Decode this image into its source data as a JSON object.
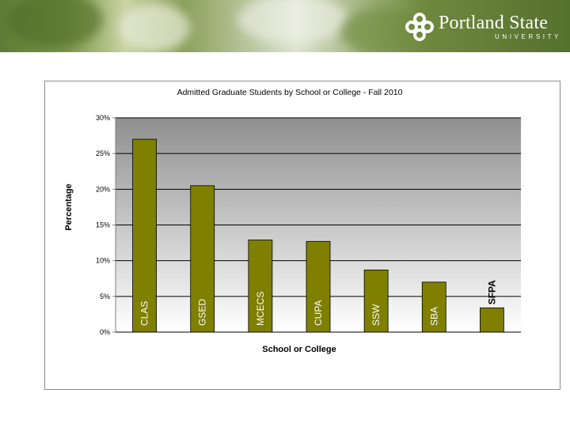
{
  "header": {
    "logo_name": "Portland State",
    "logo_sub": "UNIVERSITY"
  },
  "chart_data": {
    "type": "bar",
    "title": "Admitted Graduate Students by School or College -  Fall 2010",
    "xlabel": "School or College",
    "ylabel": "Percentage",
    "categories": [
      "CLAS",
      "GSED",
      "MCECS",
      "CUPA",
      "SSW",
      "SBA",
      "SFPA"
    ],
    "values": [
      27.0,
      20.5,
      12.9,
      12.7,
      8.7,
      7.0,
      3.4
    ],
    "ylim": [
      0,
      30
    ],
    "yticks": [
      0,
      5,
      10,
      15,
      20,
      25,
      30
    ],
    "ytick_labels": [
      "0%",
      "5%",
      "10%",
      "15%",
      "20%",
      "25%",
      "30%"
    ],
    "grid": true,
    "bar_color": "#7f7f00",
    "legend": "none"
  }
}
